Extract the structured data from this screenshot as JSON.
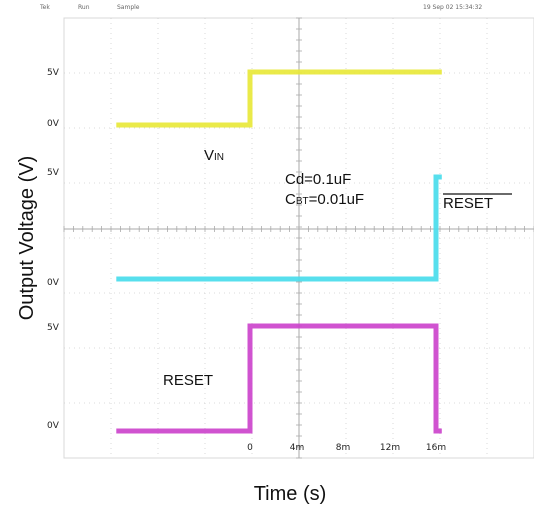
{
  "header": {
    "left_items": [
      "Tek",
      "Run",
      "Sample"
    ],
    "timestamp": "19 Sep 02 15:34:32"
  },
  "chart_data": {
    "type": "line",
    "title": "",
    "xlabel": "Time (s)",
    "ylabel": "Output Voltage (V)",
    "x_ticks": [
      "0",
      "4m",
      "8m",
      "12m",
      "16m"
    ],
    "xlim_ms": [
      -11.5,
      16.5
    ],
    "grid": true,
    "channels": [
      {
        "name": "VIN",
        "label_main": "V",
        "label_sub": "IN",
        "color": "#e8e83a",
        "level_labels": [
          "5V",
          "0V"
        ],
        "levels_v": [
          0,
          5
        ],
        "x_ms": [
          -11.5,
          0,
          0,
          16.5
        ],
        "y_v": [
          0,
          0,
          5,
          5
        ]
      },
      {
        "name": "RESET_BAR",
        "label_main": "RESET",
        "overline": true,
        "color": "#49dcec",
        "level_labels": [
          "5V",
          "0V"
        ],
        "levels_v": [
          0,
          5
        ],
        "x_ms": [
          -11.5,
          16,
          16,
          16.5
        ],
        "y_v": [
          0,
          0,
          5,
          5
        ]
      },
      {
        "name": "RESET",
        "label_main": "RESET",
        "color": "#cc44cc",
        "level_labels": [
          "5V",
          "0V"
        ],
        "levels_v": [
          0,
          5
        ],
        "x_ms": [
          -11.5,
          0,
          0,
          16,
          16,
          16.5
        ],
        "y_v": [
          0,
          0,
          5,
          5,
          0,
          0
        ]
      }
    ],
    "annotations": [
      {
        "main": "Cd=0.1uF"
      },
      {
        "main": "C",
        "sub": "BT",
        "rest": "=0.01uF"
      }
    ]
  }
}
